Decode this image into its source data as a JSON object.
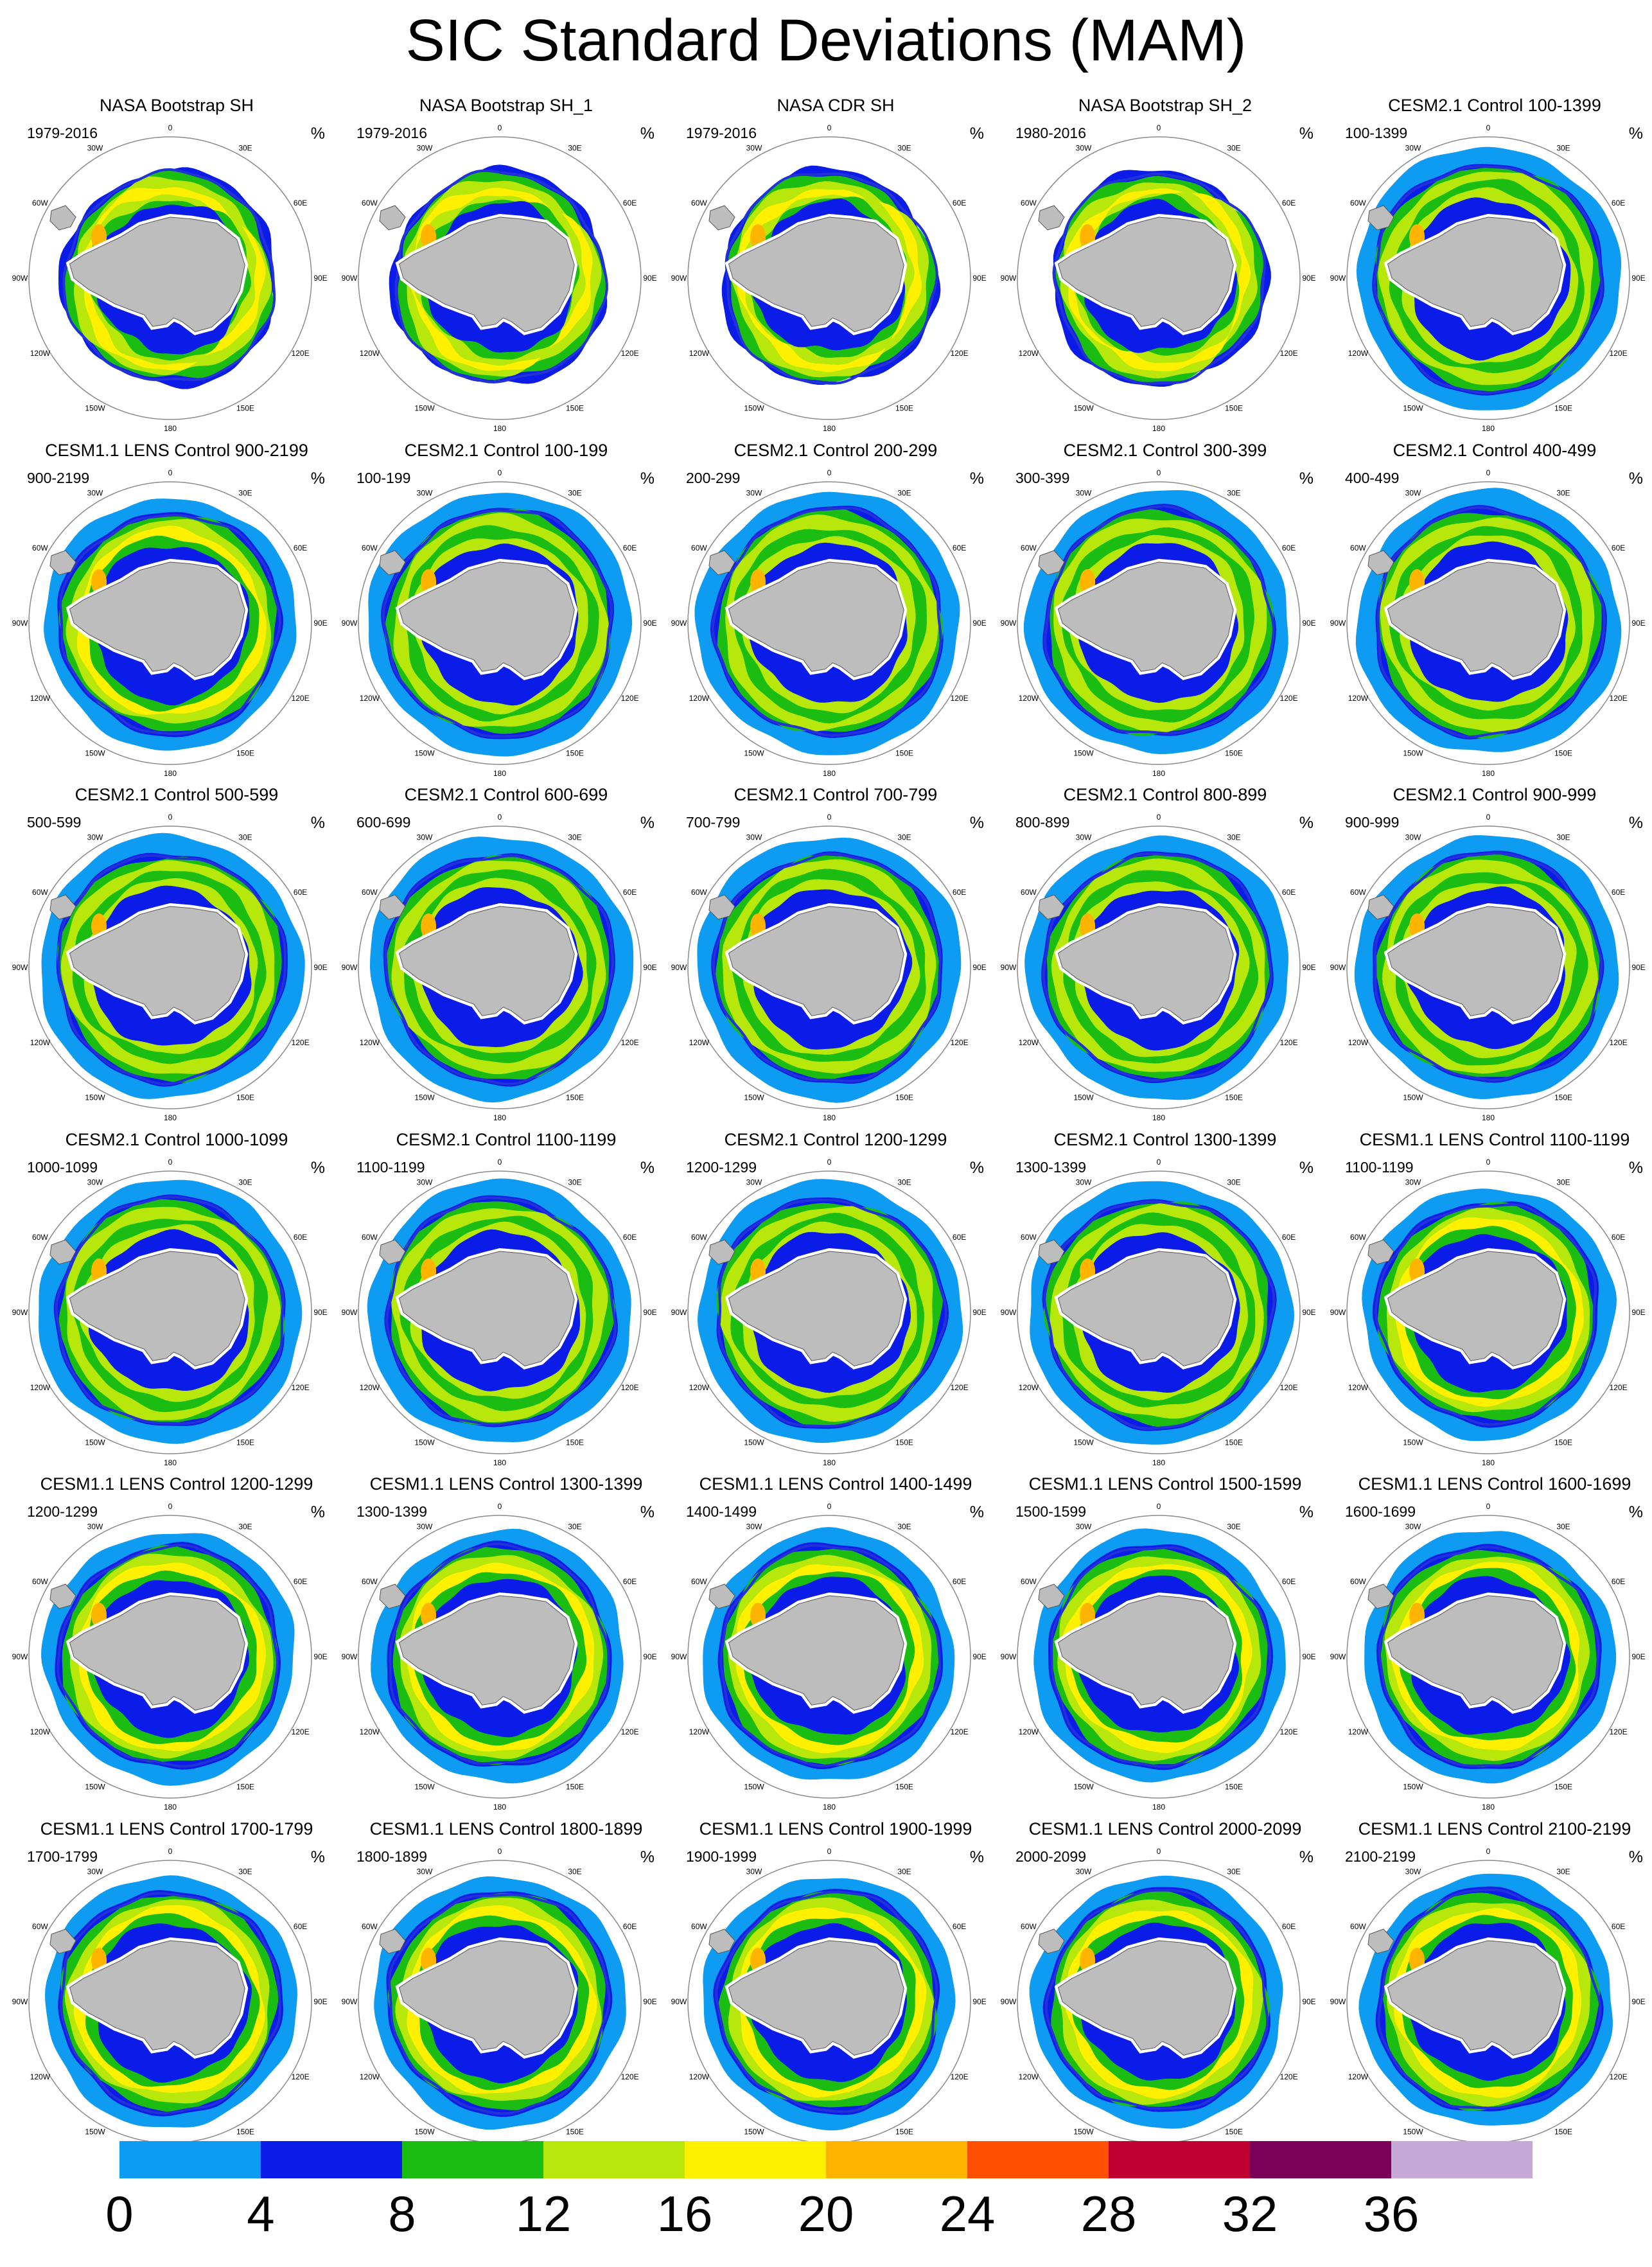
{
  "figure": {
    "title": "SIC Standard Deviations (MAM)",
    "unit": "%"
  },
  "panels": [
    {
      "title": "NASA Bootstrap SH",
      "years": "1979-2016",
      "style": "obs"
    },
    {
      "title": "NASA Bootstrap SH_1",
      "years": "1979-2016",
      "style": "obs"
    },
    {
      "title": "NASA CDR SH",
      "years": "1979-2016",
      "style": "obs"
    },
    {
      "title": "NASA Bootstrap SH_2",
      "years": "1980-2016",
      "style": "obs"
    },
    {
      "title": "CESM2.1 Control 100-1399",
      "years": "100-1399",
      "style": "cesm2"
    },
    {
      "title": "CESM1.1 LENS Control 900-2199",
      "years": "900-2199",
      "style": "cesm1"
    },
    {
      "title": "CESM2.1 Control 100-199",
      "years": "100-199",
      "style": "cesm2"
    },
    {
      "title": "CESM2.1 Control 200-299",
      "years": "200-299",
      "style": "cesm2"
    },
    {
      "title": "CESM2.1 Control 300-399",
      "years": "300-399",
      "style": "cesm2"
    },
    {
      "title": "CESM2.1 Control 400-499",
      "years": "400-499",
      "style": "cesm2"
    },
    {
      "title": "CESM2.1 Control 500-599",
      "years": "500-599",
      "style": "cesm2"
    },
    {
      "title": "CESM2.1 Control 600-699",
      "years": "600-699",
      "style": "cesm2"
    },
    {
      "title": "CESM2.1 Control 700-799",
      "years": "700-799",
      "style": "cesm2"
    },
    {
      "title": "CESM2.1 Control 800-899",
      "years": "800-899",
      "style": "cesm2"
    },
    {
      "title": "CESM2.1 Control 900-999",
      "years": "900-999",
      "style": "cesm2"
    },
    {
      "title": "CESM2.1 Control 1000-1099",
      "years": "1000-1099",
      "style": "cesm2"
    },
    {
      "title": "CESM2.1 Control 1100-1199",
      "years": "1100-1199",
      "style": "cesm2"
    },
    {
      "title": "CESM2.1 Control 1200-1299",
      "years": "1200-1299",
      "style": "cesm2"
    },
    {
      "title": "CESM2.1 Control 1300-1399",
      "years": "1300-1399",
      "style": "cesm2"
    },
    {
      "title": "CESM1.1 LENS Control 1100-1199",
      "years": "1100-1199",
      "style": "cesm1"
    },
    {
      "title": "CESM1.1 LENS Control 1200-1299",
      "years": "1200-1299",
      "style": "cesm1"
    },
    {
      "title": "CESM1.1 LENS Control 1300-1399",
      "years": "1300-1399",
      "style": "cesm1"
    },
    {
      "title": "CESM1.1 LENS Control 1400-1499",
      "years": "1400-1499",
      "style": "cesm1"
    },
    {
      "title": "CESM1.1 LENS Control 1500-1599",
      "years": "1500-1599",
      "style": "cesm1"
    },
    {
      "title": "CESM1.1 LENS Control 1600-1699",
      "years": "1600-1699",
      "style": "cesm1"
    },
    {
      "title": "CESM1.1 LENS Control 1700-1799",
      "years": "1700-1799",
      "style": "cesm1"
    },
    {
      "title": "CESM1.1 LENS Control 1800-1899",
      "years": "1800-1899",
      "style": "cesm1"
    },
    {
      "title": "CESM1.1 LENS Control 1900-1999",
      "years": "1900-1999",
      "style": "cesm1"
    },
    {
      "title": "CESM1.1 LENS Control 2000-2099",
      "years": "2000-2099",
      "style": "cesm1"
    },
    {
      "title": "CESM1.1 LENS Control 2100-2199",
      "years": "2100-2199",
      "style": "cesm1"
    }
  ],
  "longitude_labels": [
    "0",
    "30E",
    "60E",
    "90E",
    "120E",
    "150E",
    "180",
    "150W",
    "120W",
    "90W",
    "60W",
    "30W"
  ],
  "colorbar": {
    "bins": [
      {
        "from": 0,
        "to": 4,
        "color": "#0d9cf2"
      },
      {
        "from": 4,
        "to": 8,
        "color": "#0b1be8"
      },
      {
        "from": 8,
        "to": 12,
        "color": "#1cbd12"
      },
      {
        "from": 12,
        "to": 16,
        "color": "#b8e80b"
      },
      {
        "from": 16,
        "to": 20,
        "color": "#fff000"
      },
      {
        "from": 20,
        "to": 24,
        "color": "#ffb500"
      },
      {
        "from": 24,
        "to": 28,
        "color": "#ff4f00"
      },
      {
        "from": 28,
        "to": 32,
        "color": "#c00030"
      },
      {
        "from": 32,
        "to": 36,
        "color": "#7c0058"
      },
      {
        "from": 36,
        "to": null,
        "color": "#c7a8d8"
      }
    ],
    "labels": [
      "0",
      "4",
      "8",
      "12",
      "16",
      "20",
      "24",
      "28",
      "32",
      "36"
    ]
  },
  "colors": {
    "land": "#bdbdbd",
    "circle": "#8a8a8a",
    "ice_edge_line": "#2232d8"
  }
}
